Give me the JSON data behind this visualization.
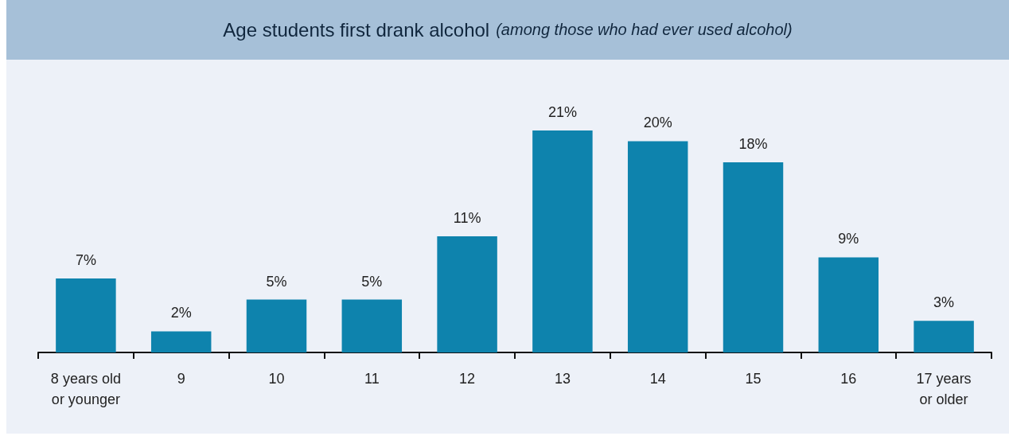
{
  "chart_data": {
    "type": "bar",
    "title": "Age students first drank alcohol",
    "subtitle": "(among those who had ever used alcohol)",
    "categories": [
      "8 years old\nor younger",
      "9",
      "10",
      "11",
      "12",
      "13",
      "14",
      "15",
      "16",
      "17 years\nor older"
    ],
    "values": [
      7,
      2,
      5,
      5,
      11,
      21,
      20,
      18,
      9,
      3
    ],
    "value_labels": [
      "7%",
      "2%",
      "5%",
      "5%",
      "11%",
      "21%",
      "20%",
      "18%",
      "9%",
      "3%"
    ],
    "color": "#0e83ad"
  }
}
